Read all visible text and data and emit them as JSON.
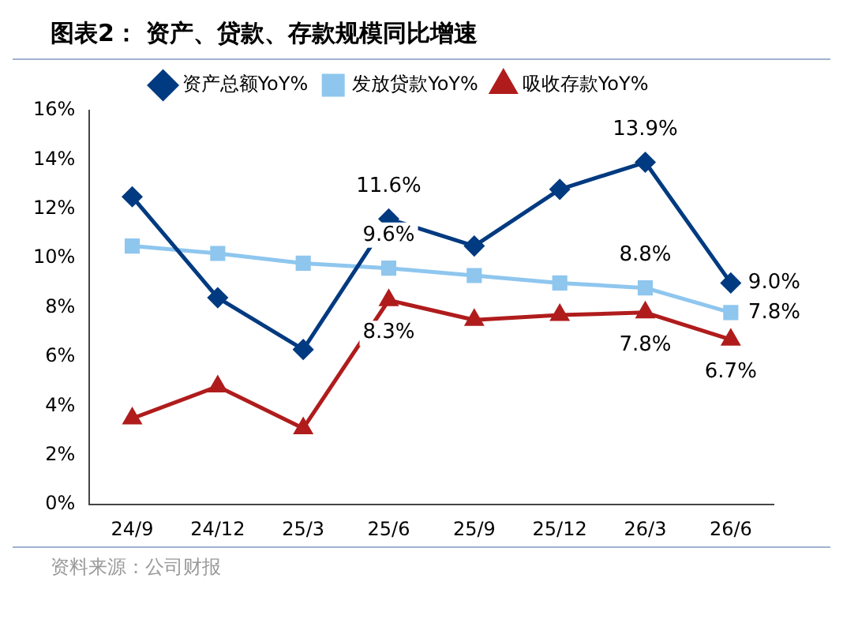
{
  "chart_data": {
    "type": "line",
    "title": "图表2：  资产、贷款、存款规模同比增速",
    "categories": [
      "24/9",
      "24/12",
      "25/3",
      "25/6",
      "25/9",
      "25/12",
      "26/3",
      "26/6"
    ],
    "series": [
      {
        "name": "资产总额YoY%",
        "color": "#003a80",
        "marker": "diamond",
        "values": [
          12.5,
          8.4,
          6.3,
          11.6,
          10.5,
          12.8,
          13.9,
          9.0
        ],
        "value_labels": [
          null,
          null,
          null,
          "11.6%",
          null,
          null,
          "13.9%",
          "9.0%"
        ]
      },
      {
        "name": "发放贷款YoY%",
        "color": "#8ec6ee",
        "marker": "square",
        "values": [
          10.5,
          10.2,
          9.8,
          9.6,
          9.3,
          9.0,
          8.8,
          7.8
        ],
        "value_labels": [
          null,
          null,
          null,
          "9.6%",
          null,
          null,
          "8.8%",
          "7.8%"
        ]
      },
      {
        "name": "吸收存款YoY%",
        "color": "#b01c1c",
        "marker": "triangle",
        "values": [
          3.5,
          4.8,
          3.1,
          8.3,
          7.5,
          7.7,
          7.8,
          6.7
        ],
        "value_labels": [
          null,
          null,
          null,
          "8.3%",
          null,
          null,
          "7.8%",
          "6.7%"
        ]
      }
    ],
    "ylim": [
      0,
      16
    ],
    "yticks": [
      {
        "value": 0,
        "label": "0%"
      },
      {
        "value": 2,
        "label": "2%"
      },
      {
        "value": 4,
        "label": "4%"
      },
      {
        "value": 6,
        "label": "6%"
      },
      {
        "value": 8,
        "label": "8%"
      },
      {
        "value": 10,
        "label": "10%"
      },
      {
        "value": 12,
        "label": "12%"
      },
      {
        "value": 14,
        "label": "14%"
      },
      {
        "value": 16,
        "label": "16%"
      }
    ],
    "grid": false,
    "legend": "top",
    "annotations": [
      "资料来源：公司财报"
    ]
  }
}
